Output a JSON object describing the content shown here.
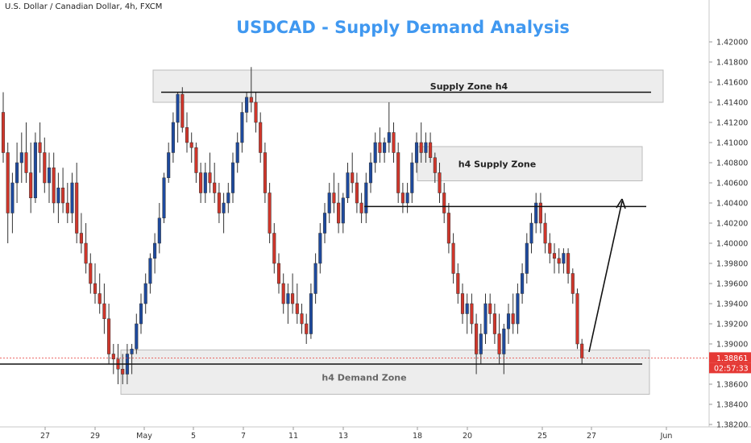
{
  "header": {
    "symbol": "U.S. Dollar / Canadian Dollar, 4h, FXCM",
    "title": "USDCAD - Supply Demand Analysis"
  },
  "colors": {
    "bull": "#1e4a9e",
    "bear": "#d0362b",
    "title": "#4098f0",
    "zone_fill": "#ededed",
    "zone_stroke": "#bcbcbc",
    "price_tag": "#e53935"
  },
  "chart_data": {
    "type": "candlestick",
    "timeframe": "4h",
    "ylim": [
      1.382,
      1.422
    ],
    "y_ticks": [
      "1.42000",
      "1.41800",
      "1.41600",
      "1.41400",
      "1.41200",
      "1.41000",
      "1.40800",
      "1.40600",
      "1.40400",
      "1.40200",
      "1.40000",
      "1.39800",
      "1.39600",
      "1.39400",
      "1.39200",
      "1.39000",
      "1.38800",
      "1.38600",
      "1.38400",
      "1.38200"
    ],
    "x_ticks": [
      "27",
      "29",
      "May",
      "5",
      "7",
      "11",
      "13",
      "18",
      "20",
      "25",
      "27",
      "Jun"
    ],
    "last_price": "1.38861",
    "countdown": "02:57:33",
    "zones": [
      {
        "label": "Supply Zone h4",
        "top": 1.4172,
        "bottom": 1.414
      },
      {
        "label": "h4 Supply Zone",
        "top": 1.4096,
        "bottom": 1.4062
      },
      {
        "label": "h4 Demand Zone",
        "top": 1.3894,
        "bottom": 1.385
      }
    ],
    "levels": [
      1.415,
      1.40365,
      1.388
    ],
    "candles": [
      [
        1.413,
        1.415,
        1.408,
        1.409
      ],
      [
        1.409,
        1.41,
        1.4,
        1.403
      ],
      [
        1.403,
        1.407,
        1.401,
        1.406
      ],
      [
        1.406,
        1.41,
        1.404,
        1.408
      ],
      [
        1.408,
        1.411,
        1.406,
        1.409
      ],
      [
        1.409,
        1.412,
        1.406,
        1.407
      ],
      [
        1.407,
        1.41,
        1.403,
        1.4045
      ],
      [
        1.4045,
        1.411,
        1.404,
        1.41
      ],
      [
        1.41,
        1.412,
        1.407,
        1.409
      ],
      [
        1.409,
        1.4105,
        1.405,
        1.406
      ],
      [
        1.406,
        1.409,
        1.404,
        1.4075
      ],
      [
        1.4075,
        1.409,
        1.403,
        1.404
      ],
      [
        1.404,
        1.407,
        1.402,
        1.4055
      ],
      [
        1.4055,
        1.4075,
        1.403,
        1.404
      ],
      [
        1.404,
        1.406,
        1.402,
        1.403
      ],
      [
        1.403,
        1.407,
        1.402,
        1.406
      ],
      [
        1.406,
        1.408,
        1.4,
        1.401
      ],
      [
        1.401,
        1.403,
        1.399,
        1.4
      ],
      [
        1.4,
        1.402,
        1.397,
        1.398
      ],
      [
        1.398,
        1.399,
        1.395,
        1.396
      ],
      [
        1.396,
        1.398,
        1.394,
        1.395
      ],
      [
        1.395,
        1.397,
        1.393,
        1.394
      ],
      [
        1.394,
        1.396,
        1.391,
        1.3925
      ],
      [
        1.3925,
        1.394,
        1.388,
        1.389
      ],
      [
        1.389,
        1.39,
        1.387,
        1.3885
      ],
      [
        1.3885,
        1.39,
        1.386,
        1.3875
      ],
      [
        1.3875,
        1.389,
        1.386,
        1.387
      ],
      [
        1.387,
        1.39,
        1.386,
        1.389
      ],
      [
        1.389,
        1.39,
        1.387,
        1.3895
      ],
      [
        1.3895,
        1.393,
        1.389,
        1.392
      ],
      [
        1.392,
        1.395,
        1.391,
        1.394
      ],
      [
        1.394,
        1.397,
        1.393,
        1.396
      ],
      [
        1.396,
        1.399,
        1.395,
        1.3985
      ],
      [
        1.3985,
        1.401,
        1.397,
        1.4
      ],
      [
        1.4,
        1.404,
        1.399,
        1.4025
      ],
      [
        1.4025,
        1.407,
        1.402,
        1.4065
      ],
      [
        1.4065,
        1.41,
        1.406,
        1.409
      ],
      [
        1.409,
        1.413,
        1.408,
        1.412
      ],
      [
        1.412,
        1.415,
        1.41,
        1.4148
      ],
      [
        1.4148,
        1.4155,
        1.411,
        1.4115
      ],
      [
        1.4115,
        1.413,
        1.409,
        1.41
      ],
      [
        1.41,
        1.411,
        1.408,
        1.4095
      ],
      [
        1.4095,
        1.41,
        1.406,
        1.407
      ],
      [
        1.407,
        1.408,
        1.404,
        1.405
      ],
      [
        1.405,
        1.408,
        1.404,
        1.407
      ],
      [
        1.407,
        1.409,
        1.405,
        1.406
      ],
      [
        1.406,
        1.408,
        1.404,
        1.405
      ],
      [
        1.405,
        1.406,
        1.402,
        1.403
      ],
      [
        1.403,
        1.405,
        1.401,
        1.404
      ],
      [
        1.404,
        1.406,
        1.403,
        1.405
      ],
      [
        1.405,
        1.409,
        1.404,
        1.408
      ],
      [
        1.408,
        1.411,
        1.407,
        1.41
      ],
      [
        1.41,
        1.414,
        1.409,
        1.413
      ],
      [
        1.413,
        1.415,
        1.412,
        1.4145
      ],
      [
        1.4145,
        1.4175,
        1.413,
        1.414
      ],
      [
        1.414,
        1.415,
        1.411,
        1.412
      ],
      [
        1.412,
        1.413,
        1.408,
        1.409
      ],
      [
        1.409,
        1.41,
        1.404,
        1.405
      ],
      [
        1.405,
        1.406,
        1.4,
        1.401
      ],
      [
        1.401,
        1.402,
        1.397,
        1.398
      ],
      [
        1.398,
        1.399,
        1.395,
        1.396
      ],
      [
        1.396,
        1.397,
        1.393,
        1.394
      ],
      [
        1.394,
        1.396,
        1.392,
        1.395
      ],
      [
        1.395,
        1.397,
        1.393,
        1.394
      ],
      [
        1.394,
        1.396,
        1.392,
        1.393
      ],
      [
        1.393,
        1.394,
        1.391,
        1.392
      ],
      [
        1.392,
        1.393,
        1.39,
        1.391
      ],
      [
        1.391,
        1.396,
        1.3905,
        1.395
      ],
      [
        1.395,
        1.399,
        1.394,
        1.398
      ],
      [
        1.398,
        1.402,
        1.397,
        1.401
      ],
      [
        1.401,
        1.404,
        1.4,
        1.403
      ],
      [
        1.403,
        1.406,
        1.402,
        1.405
      ],
      [
        1.405,
        1.407,
        1.403,
        1.404
      ],
      [
        1.404,
        1.406,
        1.401,
        1.402
      ],
      [
        1.402,
        1.405,
        1.401,
        1.4045
      ],
      [
        1.4045,
        1.408,
        1.404,
        1.407
      ],
      [
        1.407,
        1.409,
        1.405,
        1.406
      ],
      [
        1.406,
        1.407,
        1.403,
        1.404
      ],
      [
        1.404,
        1.405,
        1.402,
        1.403
      ],
      [
        1.403,
        1.407,
        1.402,
        1.406
      ],
      [
        1.406,
        1.409,
        1.405,
        1.408
      ],
      [
        1.408,
        1.411,
        1.407,
        1.41
      ],
      [
        1.41,
        1.4115,
        1.408,
        1.409
      ],
      [
        1.409,
        1.4105,
        1.408,
        1.41
      ],
      [
        1.41,
        1.414,
        1.409,
        1.411
      ],
      [
        1.411,
        1.412,
        1.408,
        1.409
      ],
      [
        1.409,
        1.41,
        1.404,
        1.405
      ],
      [
        1.405,
        1.406,
        1.403,
        1.404
      ],
      [
        1.404,
        1.406,
        1.403,
        1.405
      ],
      [
        1.405,
        1.409,
        1.404,
        1.408
      ],
      [
        1.408,
        1.411,
        1.407,
        1.41
      ],
      [
        1.41,
        1.412,
        1.408,
        1.409
      ],
      [
        1.409,
        1.411,
        1.408,
        1.41
      ],
      [
        1.41,
        1.411,
        1.408,
        1.4085
      ],
      [
        1.4085,
        1.409,
        1.406,
        1.407
      ],
      [
        1.407,
        1.408,
        1.404,
        1.405
      ],
      [
        1.405,
        1.406,
        1.402,
        1.403
      ],
      [
        1.403,
        1.404,
        1.399,
        1.4
      ],
      [
        1.4,
        1.401,
        1.396,
        1.397
      ],
      [
        1.397,
        1.398,
        1.394,
        1.395
      ],
      [
        1.395,
        1.396,
        1.392,
        1.393
      ],
      [
        1.393,
        1.395,
        1.391,
        1.394
      ],
      [
        1.394,
        1.395,
        1.391,
        1.392
      ],
      [
        1.392,
        1.393,
        1.387,
        1.389
      ],
      [
        1.389,
        1.392,
        1.388,
        1.391
      ],
      [
        1.391,
        1.395,
        1.39,
        1.394
      ],
      [
        1.394,
        1.395,
        1.392,
        1.393
      ],
      [
        1.393,
        1.394,
        1.39,
        1.391
      ],
      [
        1.391,
        1.393,
        1.388,
        1.389
      ],
      [
        1.389,
        1.392,
        1.387,
        1.3915
      ],
      [
        1.3915,
        1.394,
        1.39,
        1.393
      ],
      [
        1.393,
        1.395,
        1.391,
        1.392
      ],
      [
        1.392,
        1.396,
        1.391,
        1.395
      ],
      [
        1.395,
        1.398,
        1.394,
        1.397
      ],
      [
        1.397,
        1.401,
        1.396,
        1.4
      ],
      [
        1.4,
        1.403,
        1.399,
        1.402
      ],
      [
        1.402,
        1.405,
        1.401,
        1.404
      ],
      [
        1.404,
        1.405,
        1.401,
        1.402
      ],
      [
        1.402,
        1.403,
        1.399,
        1.4
      ],
      [
        1.4,
        1.401,
        1.398,
        1.399
      ],
      [
        1.399,
        1.4,
        1.397,
        1.3985
      ],
      [
        1.3985,
        1.3995,
        1.397,
        1.398
      ],
      [
        1.398,
        1.3995,
        1.397,
        1.399
      ],
      [
        1.399,
        1.3995,
        1.396,
        1.397
      ],
      [
        1.397,
        1.3975,
        1.394,
        1.395
      ],
      [
        1.395,
        1.3955,
        1.3895,
        1.39
      ],
      [
        1.39,
        1.3905,
        1.388,
        1.3886
      ]
    ]
  }
}
